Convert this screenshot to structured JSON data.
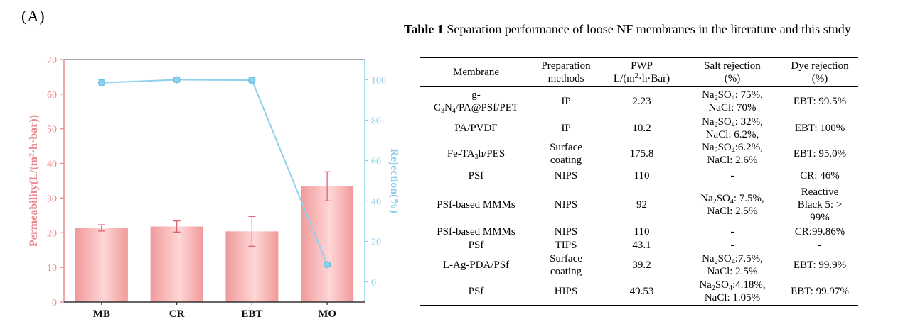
{
  "panel_label": "(A)",
  "chart_data": {
    "type": "bar",
    "categories": [
      "MB",
      "CR",
      "EBT",
      "MO"
    ],
    "ylabel": "Permeability(L/(m²·h·bar))",
    "y2label": "Rejection(%)",
    "ylim": [
      0,
      70
    ],
    "y2lim": [
      -10,
      110
    ],
    "yticks": [
      0,
      10,
      20,
      30,
      40,
      50,
      60,
      70
    ],
    "y2ticks": [
      0,
      20,
      40,
      60,
      80,
      100
    ],
    "series": [
      {
        "kind": "bar",
        "axis": "left",
        "values": [
          21.4,
          21.8,
          20.4,
          33.4
        ],
        "errors": [
          0.9,
          1.6,
          4.3,
          4.2
        ]
      },
      {
        "kind": "line",
        "axis": "right",
        "values": [
          98.5,
          100,
          99.8,
          8.5
        ],
        "errors": [
          1.5,
          1.2,
          1.2,
          1.0
        ]
      }
    ],
    "colors": {
      "bar": "#f09a9a",
      "bar_light": "#ffd6d6",
      "error": "#d9646e",
      "left_axis": "#e98a8e",
      "right_axis": "#8fcfe9",
      "line": "#8fd0ef"
    },
    "grid": false
  },
  "table": {
    "title_bold": "Table 1",
    "title_text": "Separation performance of loose NF membranes in the literature and this study",
    "headers": {
      "membrane": "Membrane",
      "prep": [
        "Preparation",
        "methods"
      ],
      "pwp_1": "PWP",
      "pwp_unit_a": "L/(m",
      "pwp_unit_sup": "2",
      "pwp_unit_b": "·h·Bar)",
      "salt": [
        "Salt rejection",
        "(%)"
      ],
      "dye": [
        "Dye rejection",
        "(%)"
      ]
    },
    "rows": [
      {
        "membrane": [
          "g-",
          "C3N4/PA@PSf/PET"
        ],
        "prep": [
          "IP"
        ],
        "pwp": "2.23",
        "salt": [
          "Na2SO4: 75%,",
          "NaCl: 70%"
        ],
        "dye": [
          "EBT: 99.5%"
        ]
      },
      {
        "membrane": [
          "PA/PVDF"
        ],
        "prep": [
          "IP"
        ],
        "pwp": "10.2",
        "salt": [
          "Na2SO4: 32%,",
          "NaCl: 6.2%,"
        ],
        "dye": [
          "EBT: 100%"
        ]
      },
      {
        "membrane": [
          "Fe-TA3h/PES"
        ],
        "prep": [
          "Surface",
          "coating"
        ],
        "pwp": "175.8",
        "salt": [
          "Na2SO4:6.2%,",
          "NaCl: 2.6%"
        ],
        "dye": [
          "EBT: 95.0%"
        ]
      },
      {
        "membrane": [
          "PSf"
        ],
        "prep": [
          "NIPS"
        ],
        "pwp": "110",
        "salt": [
          "-"
        ],
        "dye": [
          "CR: 46%"
        ]
      },
      {
        "membrane": [
          "PSf-based MMMs"
        ],
        "prep": [
          "NIPS"
        ],
        "pwp": "92",
        "salt": [
          "Na2SO4: 7.5%,",
          "NaCl: 2.5%"
        ],
        "dye": [
          "Reactive",
          "Black 5: >",
          "99%"
        ]
      },
      {
        "membrane": [
          "PSf-based MMMs"
        ],
        "prep": [
          "NIPS"
        ],
        "pwp": "110",
        "salt": [
          "-"
        ],
        "dye": [
          "CR:99.86%"
        ]
      },
      {
        "membrane": [
          "PSf"
        ],
        "prep": [
          "TIPS"
        ],
        "pwp": "43.1",
        "salt": [
          "-"
        ],
        "dye": [
          "-"
        ]
      },
      {
        "membrane": [
          "L-Ag-PDA/PSf"
        ],
        "prep": [
          "Surface",
          "coating"
        ],
        "pwp": "39.2",
        "salt": [
          "Na2SO4:7.5%,",
          "NaCl: 2.5%"
        ],
        "dye": [
          "EBT: 99.9%"
        ]
      },
      {
        "membrane": [
          "PSf"
        ],
        "prep": [
          "HIPS"
        ],
        "pwp": "49.53",
        "salt": [
          "Na2SO4:4.18%,",
          "NaCl: 1.05%"
        ],
        "dye": [
          "EBT: 99.97%"
        ]
      }
    ]
  }
}
